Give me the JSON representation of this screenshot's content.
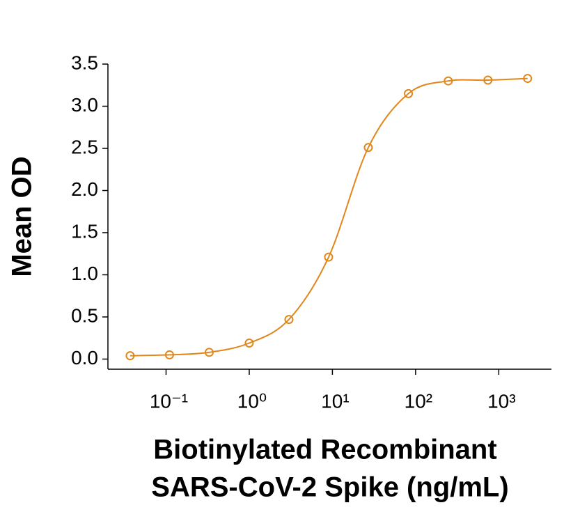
{
  "chart_data": {
    "type": "line",
    "ylabel": "Mean OD",
    "xlabel": [
      "Biotinylated Recombinant",
      "SARS-CoV-2 Spike (ng/mL)"
    ],
    "x": [
      0.037,
      0.11,
      0.33,
      1,
      3,
      9,
      27,
      82,
      247,
      741,
      2222
    ],
    "series": [
      {
        "color": "#e0861a",
        "values": [
          0.04,
          0.05,
          0.08,
          0.19,
          0.47,
          1.21,
          2.51,
          3.15,
          3.3,
          3.31,
          3.33
        ]
      }
    ],
    "xscale": "log",
    "xlim": [
      0.02,
      4300
    ],
    "xticks": [
      {
        "value": 0.1,
        "label": "10⁻¹"
      },
      {
        "value": 1,
        "label": "10⁰"
      },
      {
        "value": 10,
        "label": "10¹"
      },
      {
        "value": 100,
        "label": "10²"
      },
      {
        "value": 1000,
        "label": "10³"
      }
    ],
    "ylim": [
      -0.12,
      3.5
    ],
    "yticks": [
      {
        "value": 0,
        "label": "0.0"
      },
      0.5,
      {
        "value": 1,
        "label": "1.0"
      },
      1.5,
      {
        "value": 2,
        "label": "2.0"
      },
      2.5,
      {
        "value": 3,
        "label": "3.0"
      },
      3.5
    ]
  }
}
